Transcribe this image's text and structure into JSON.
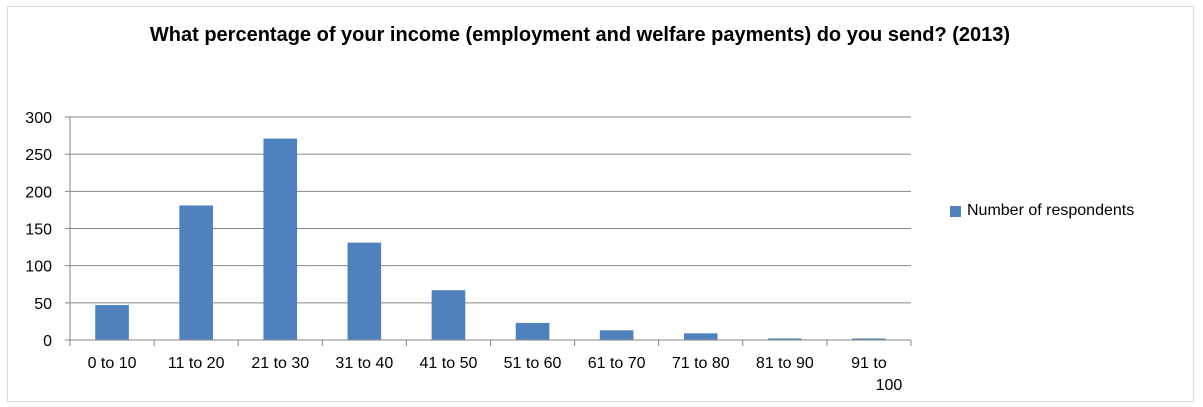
{
  "chart_data": {
    "type": "bar",
    "title": "What percentage of your income (employment and welfare payments) do you send? (2013)",
    "categories": [
      "0 to 10",
      "11 to 20",
      "21 to 30",
      "31 to 40",
      "41 to 50",
      "51 to 60",
      "61 to 70",
      "71 to 80",
      "81 to 90",
      "91 to 100"
    ],
    "series": [
      {
        "name": "Number of respondents",
        "values": [
          47,
          181,
          271,
          131,
          67,
          23,
          13,
          9,
          2,
          2
        ],
        "color": "#4f81bd"
      }
    ],
    "y_ticks": [
      "0",
      "50",
      "100",
      "150",
      "200",
      "250",
      "300"
    ],
    "ylim": [
      0,
      300
    ],
    "grid": true,
    "legend_position": "right"
  }
}
